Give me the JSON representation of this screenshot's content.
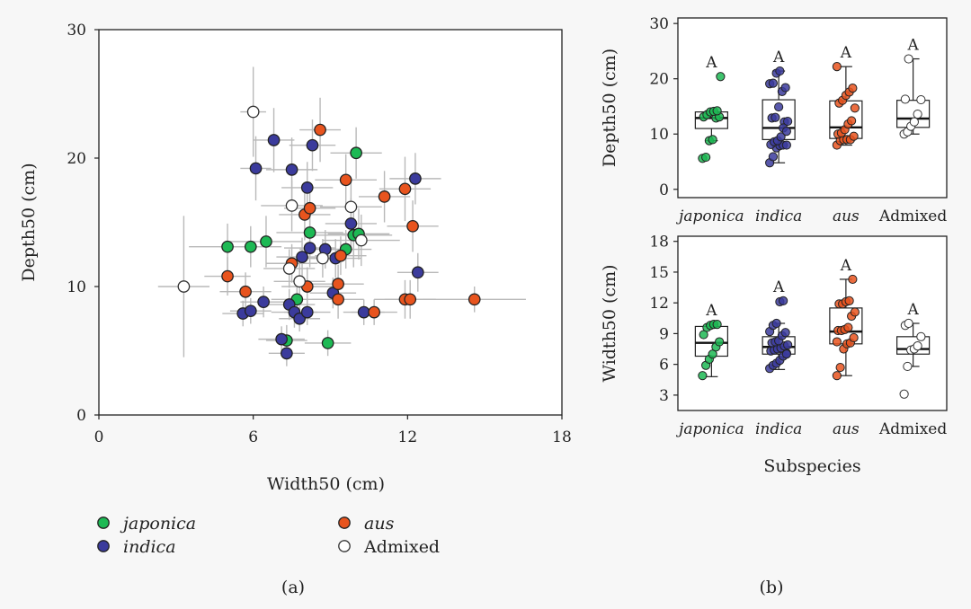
{
  "chart_data": [
    {
      "id": "a",
      "type": "scatter",
      "panel_label": "(a)",
      "xlabel": "Width50 (cm)",
      "ylabel": "Depth50 (cm)",
      "xlim": [
        0,
        18
      ],
      "ylim": [
        0,
        30
      ],
      "xticks": [
        0,
        6,
        12,
        18
      ],
      "yticks": [
        0,
        10,
        20,
        30
      ],
      "error_bars": true,
      "series": [
        {
          "name": "japonica",
          "color": "#1db954",
          "points": [
            {
              "x": 5.0,
              "y": 13.1,
              "xerr": 1.5,
              "yerr": 1.8
            },
            {
              "x": 5.9,
              "y": 13.1,
              "xerr": 1.2,
              "yerr": 1.6
            },
            {
              "x": 6.5,
              "y": 13.5,
              "xerr": 1.4,
              "yerr": 2.0
            },
            {
              "x": 7.7,
              "y": 9.0,
              "xerr": 1.0,
              "yerr": 1.5
            },
            {
              "x": 8.2,
              "y": 14.2,
              "xerr": 1.3,
              "yerr": 1.8
            },
            {
              "x": 7.3,
              "y": 5.8,
              "xerr": 0.8,
              "yerr": 1.2
            },
            {
              "x": 8.9,
              "y": 5.6,
              "xerr": 0.9,
              "yerr": 1.0
            },
            {
              "x": 9.6,
              "y": 12.9,
              "xerr": 1.0,
              "yerr": 1.5
            },
            {
              "x": 9.9,
              "y": 14.0,
              "xerr": 1.5,
              "yerr": 2.5
            },
            {
              "x": 10.0,
              "y": 20.4,
              "xerr": 1.0,
              "yerr": 2.0
            },
            {
              "x": 10.1,
              "y": 14.1,
              "xerr": 1.2,
              "yerr": 2.0
            }
          ]
        },
        {
          "name": "indica",
          "color": "#3b3b9c",
          "points": [
            {
              "x": 5.6,
              "y": 7.9,
              "xerr": 0.8,
              "yerr": 1.0
            },
            {
              "x": 5.9,
              "y": 8.1,
              "xerr": 0.8,
              "yerr": 1.0
            },
            {
              "x": 6.1,
              "y": 19.2,
              "xerr": 0.6,
              "yerr": 2.5
            },
            {
              "x": 6.4,
              "y": 8.8,
              "xerr": 0.9,
              "yerr": 1.2
            },
            {
              "x": 6.8,
              "y": 21.4,
              "xerr": 0.8,
              "yerr": 2.5
            },
            {
              "x": 7.1,
              "y": 5.9,
              "xerr": 0.9,
              "yerr": 1.0
            },
            {
              "x": 7.3,
              "y": 4.8,
              "xerr": 0.7,
              "yerr": 1.0
            },
            {
              "x": 7.4,
              "y": 8.6,
              "xerr": 1.0,
              "yerr": 1.2
            },
            {
              "x": 7.5,
              "y": 19.1,
              "xerr": 1.0,
              "yerr": 2.5
            },
            {
              "x": 7.6,
              "y": 8.0,
              "xerr": 0.9,
              "yerr": 1.2
            },
            {
              "x": 7.8,
              "y": 7.5,
              "xerr": 0.8,
              "yerr": 1.0
            },
            {
              "x": 7.9,
              "y": 12.3,
              "xerr": 1.0,
              "yerr": 1.5
            },
            {
              "x": 8.1,
              "y": 17.7,
              "xerr": 1.0,
              "yerr": 2.0
            },
            {
              "x": 8.1,
              "y": 8.0,
              "xerr": 0.9,
              "yerr": 1.0
            },
            {
              "x": 8.2,
              "y": 13.0,
              "xerr": 1.0,
              "yerr": 1.5
            },
            {
              "x": 8.3,
              "y": 21.0,
              "xerr": 0.9,
              "yerr": 2.0
            },
            {
              "x": 8.8,
              "y": 12.9,
              "xerr": 1.0,
              "yerr": 1.5
            },
            {
              "x": 9.1,
              "y": 9.5,
              "xerr": 0.9,
              "yerr": 1.2
            },
            {
              "x": 9.2,
              "y": 12.2,
              "xerr": 1.0,
              "yerr": 1.5
            },
            {
              "x": 9.8,
              "y": 14.9,
              "xerr": 1.0,
              "yerr": 2.0
            },
            {
              "x": 10.3,
              "y": 8.0,
              "xerr": 0.8,
              "yerr": 1.0
            },
            {
              "x": 12.3,
              "y": 18.4,
              "xerr": 1.0,
              "yerr": 2.0
            },
            {
              "x": 12.4,
              "y": 11.1,
              "xerr": 0.8,
              "yerr": 1.5
            }
          ]
        },
        {
          "name": "aus",
          "color": "#e8541e",
          "points": [
            {
              "x": 5.0,
              "y": 10.8,
              "xerr": 0.9,
              "yerr": 1.5
            },
            {
              "x": 5.7,
              "y": 9.6,
              "xerr": 1.0,
              "yerr": 1.5
            },
            {
              "x": 7.5,
              "y": 11.8,
              "xerr": 1.0,
              "yerr": 1.5
            },
            {
              "x": 8.0,
              "y": 15.6,
              "xerr": 1.0,
              "yerr": 2.0
            },
            {
              "x": 8.1,
              "y": 10.0,
              "xerr": 1.0,
              "yerr": 1.5
            },
            {
              "x": 8.2,
              "y": 16.1,
              "xerr": 1.0,
              "yerr": 2.0
            },
            {
              "x": 8.6,
              "y": 22.2,
              "xerr": 0.8,
              "yerr": 2.5
            },
            {
              "x": 9.3,
              "y": 10.2,
              "xerr": 1.0,
              "yerr": 1.5
            },
            {
              "x": 9.3,
              "y": 9.0,
              "xerr": 1.0,
              "yerr": 1.5
            },
            {
              "x": 9.4,
              "y": 12.4,
              "xerr": 1.0,
              "yerr": 1.5
            },
            {
              "x": 9.6,
              "y": 18.3,
              "xerr": 1.2,
              "yerr": 2.0
            },
            {
              "x": 10.7,
              "y": 8.0,
              "xerr": 0.9,
              "yerr": 1.0
            },
            {
              "x": 11.1,
              "y": 17.0,
              "xerr": 1.0,
              "yerr": 2.0
            },
            {
              "x": 11.9,
              "y": 9.0,
              "xerr": 1.2,
              "yerr": 1.5
            },
            {
              "x": 11.9,
              "y": 17.6,
              "xerr": 1.0,
              "yerr": 2.5
            },
            {
              "x": 12.1,
              "y": 9.0,
              "xerr": 1.0,
              "yerr": 1.5
            },
            {
              "x": 12.2,
              "y": 14.7,
              "xerr": 1.0,
              "yerr": 2.0
            },
            {
              "x": 14.6,
              "y": 9.0,
              "xerr": 2.0,
              "yerr": 1.0
            }
          ]
        },
        {
          "name": "Admixed",
          "color": "#ffffff",
          "points": [
            {
              "x": 3.3,
              "y": 10.0,
              "xerr": 1.0,
              "yerr": 5.5
            },
            {
              "x": 6.0,
              "y": 23.6,
              "xerr": 0.5,
              "yerr": 3.5
            },
            {
              "x": 7.4,
              "y": 11.4,
              "xerr": 1.0,
              "yerr": 1.5
            },
            {
              "x": 7.5,
              "y": 16.3,
              "xerr": 1.2,
              "yerr": 2.0
            },
            {
              "x": 7.8,
              "y": 10.4,
              "xerr": 1.0,
              "yerr": 1.5
            },
            {
              "x": 8.7,
              "y": 12.2,
              "xerr": 1.0,
              "yerr": 1.5
            },
            {
              "x": 9.8,
              "y": 16.2,
              "xerr": 1.2,
              "yerr": 2.0
            },
            {
              "x": 10.2,
              "y": 13.6,
              "xerr": 1.5,
              "yerr": 2.0
            }
          ]
        }
      ]
    },
    {
      "id": "b_depth",
      "type": "box",
      "panel_label": "(b)",
      "ylabel": "Depth50 (cm)",
      "ylim": [
        -1.5,
        31
      ],
      "yticks": [
        0,
        10,
        20,
        30
      ],
      "categories": [
        "japonica",
        "indica",
        "aus",
        "Admixed"
      ],
      "category_italic": [
        true,
        true,
        true,
        false
      ],
      "colors": [
        "#1db954",
        "#3b3b9c",
        "#e8541e",
        "#ffffff"
      ],
      "group_letters": [
        "A",
        "A",
        "A",
        "A"
      ],
      "boxes": [
        {
          "min": 8.8,
          "q1": 11.0,
          "median": 12.9,
          "q3": 14.0,
          "max": 14.2
        },
        {
          "min": 4.8,
          "q1": 9.0,
          "median": 11.1,
          "q3": 16.2,
          "max": 21.4
        },
        {
          "min": 8.0,
          "q1": 9.2,
          "median": 11.2,
          "q3": 16.0,
          "max": 22.2
        },
        {
          "min": 10.0,
          "q1": 11.2,
          "median": 12.8,
          "q3": 16.1,
          "max": 23.6
        }
      ],
      "points": [
        [
          5.6,
          5.8,
          8.8,
          9.0,
          12.9,
          13.1,
          13.1,
          13.5,
          14.0,
          14.1,
          14.2,
          20.4
        ],
        [
          4.8,
          5.9,
          7.5,
          7.9,
          8.0,
          8.0,
          8.1,
          8.6,
          8.8,
          9.5,
          12.2,
          12.3,
          12.9,
          13.0,
          14.9,
          17.7,
          18.4,
          19.1,
          19.2,
          21.0,
          21.4,
          11.1,
          10.5
        ],
        [
          8.0,
          8.8,
          9.0,
          9.0,
          9.0,
          9.6,
          10.0,
          10.2,
          10.8,
          11.8,
          12.4,
          14.7,
          15.6,
          16.1,
          17.0,
          17.6,
          18.3,
          22.2
        ],
        [
          10.0,
          10.4,
          11.4,
          12.2,
          13.6,
          16.2,
          16.3,
          23.6
        ]
      ]
    },
    {
      "id": "b_width",
      "type": "box",
      "xlabel": "Subspecies",
      "ylabel": "Width50 (cm)",
      "ylim": [
        1.5,
        18.5
      ],
      "yticks": [
        3,
        6,
        9,
        12,
        15,
        18
      ],
      "categories": [
        "japonica",
        "indica",
        "aus",
        "Admixed"
      ],
      "category_italic": [
        true,
        true,
        true,
        false
      ],
      "colors": [
        "#1db954",
        "#3b3b9c",
        "#e8541e",
        "#ffffff"
      ],
      "group_letters": [
        "A",
        "A",
        "A",
        "A"
      ],
      "boxes": [
        {
          "min": 4.8,
          "q1": 6.8,
          "median": 8.1,
          "q3": 9.7,
          "max": 9.9
        },
        {
          "min": 5.5,
          "q1": 7.0,
          "median": 7.7,
          "q3": 8.7,
          "max": 10.0
        },
        {
          "min": 4.9,
          "q1": 8.0,
          "median": 9.2,
          "q3": 11.5,
          "max": 14.3
        },
        {
          "min": 5.8,
          "q1": 7.0,
          "median": 7.5,
          "q3": 8.7,
          "max": 10.0
        }
      ],
      "points": [
        [
          4.9,
          5.9,
          6.5,
          7.0,
          7.7,
          8.2,
          8.9,
          9.6,
          9.8,
          9.9,
          9.9
        ],
        [
          5.6,
          5.9,
          6.1,
          6.4,
          6.8,
          7.1,
          7.3,
          7.4,
          7.5,
          7.6,
          7.8,
          7.9,
          8.1,
          8.2,
          8.3,
          8.8,
          9.1,
          9.2,
          9.8,
          10.0,
          12.1,
          12.2,
          7.0
        ],
        [
          4.9,
          5.7,
          7.5,
          8.0,
          8.1,
          8.6,
          9.3,
          9.3,
          9.4,
          9.6,
          10.7,
          11.1,
          11.9,
          11.9,
          12.1,
          12.2,
          14.3,
          8.2
        ],
        [
          3.1,
          5.8,
          7.4,
          7.5,
          7.8,
          8.7,
          9.8,
          10.0
        ]
      ]
    }
  ],
  "legend": [
    {
      "name": "japonica",
      "italic": true,
      "color": "#1db954"
    },
    {
      "name": "indica",
      "italic": true,
      "color": "#3b3b9c"
    },
    {
      "name": "aus",
      "italic": true,
      "color": "#e8541e"
    },
    {
      "name": "Admixed",
      "italic": false,
      "color": "#ffffff"
    }
  ]
}
